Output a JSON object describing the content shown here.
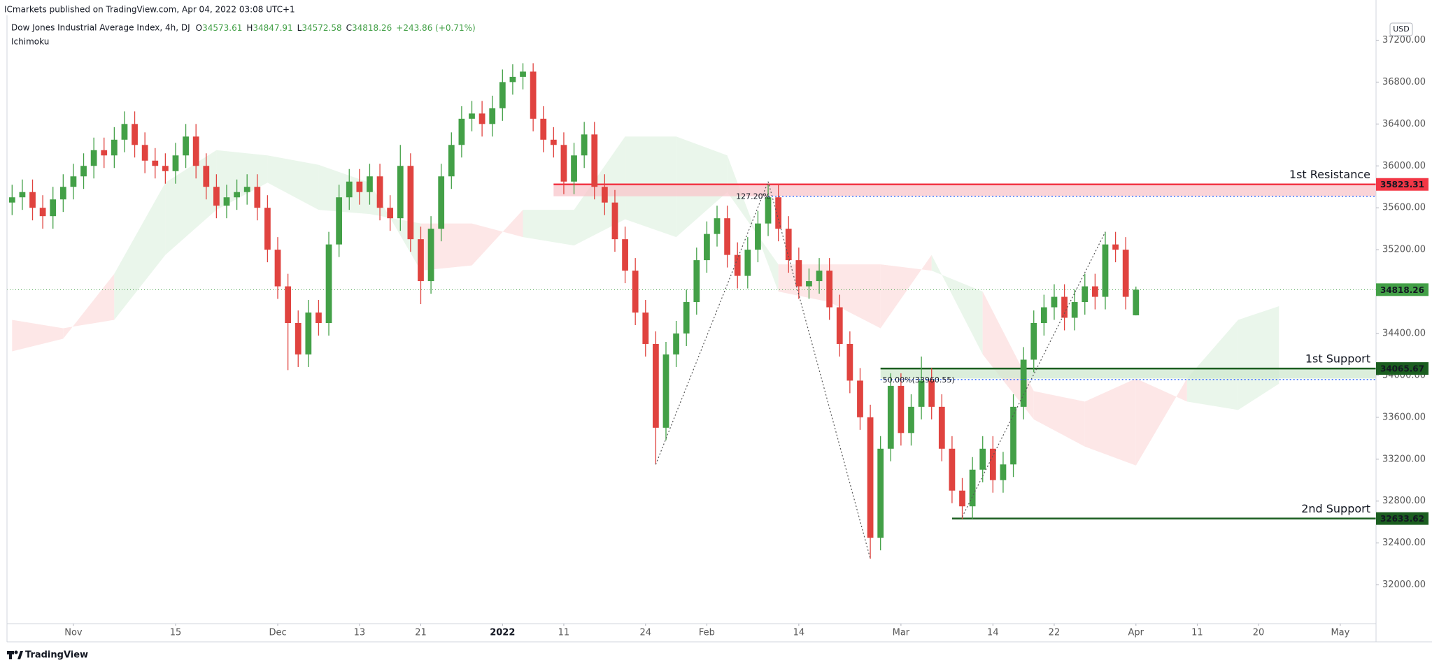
{
  "chart_data": {
    "type": "candlestick",
    "publisher": "ICmarkets published on TradingView.com, Apr 04, 2022 03:08 UTC+1",
    "title": "Dow Jones Industrial Average Index, 4h, DJ",
    "indicator": "Ichimoku",
    "ohlc_letters": [
      "O",
      "H",
      "L",
      "C"
    ],
    "change": "+243.86 (+0.71%)",
    "currency": "USD",
    "watermark": "TradingView",
    "up_color": "#43a047",
    "down_color": "#e0433f",
    "x": [
      0,
      1,
      2,
      3,
      4,
      5,
      6,
      7,
      8,
      9,
      10,
      11,
      12,
      13,
      14,
      15,
      16,
      17,
      18,
      19,
      20,
      21,
      22,
      23,
      24,
      25,
      26,
      27,
      28,
      29,
      30,
      31,
      32,
      33,
      34,
      35,
      36,
      37,
      38,
      39,
      40,
      41,
      42,
      43,
      44,
      45,
      46,
      47,
      48,
      49,
      50,
      51,
      52,
      53,
      54,
      55,
      56,
      57,
      58,
      59,
      60,
      61,
      62,
      63,
      64,
      65,
      66,
      67,
      68,
      69,
      70,
      71,
      72,
      73,
      74,
      75,
      76,
      77,
      78,
      79,
      80,
      81,
      82,
      83,
      84,
      85,
      86,
      87,
      88,
      89,
      90,
      91,
      92,
      93,
      94,
      95,
      96,
      97,
      98,
      99,
      100,
      101,
      102,
      103,
      104,
      105,
      106,
      107,
      108,
      109,
      110
    ],
    "open": [
      35650,
      35700,
      35750,
      35600,
      35520,
      35680,
      35800,
      35900,
      36000,
      36150,
      36100,
      36250,
      36400,
      36200,
      36050,
      36000,
      35950,
      36100,
      36280,
      36000,
      35800,
      35620,
      35700,
      35750,
      35800,
      35600,
      35200,
      34850,
      34500,
      34200,
      34600,
      34500,
      35250,
      35700,
      35850,
      35750,
      35900,
      35600,
      35500,
      36000,
      35300,
      34900,
      35400,
      35900,
      36200,
      36450,
      36500,
      36400,
      36550,
      36800,
      36850,
      36900,
      36450,
      36250,
      36200,
      35850,
      36100,
      36300,
      35800,
      35650,
      35300,
      35000,
      34600,
      34300,
      33500,
      34200,
      34400,
      34700,
      35100,
      35350,
      35500,
      35150,
      34950,
      35200,
      35450,
      35700,
      35400,
      35100,
      34850,
      34900,
      35000,
      34650,
      34300,
      33950,
      33600,
      32450,
      33300,
      33900,
      33450,
      33700,
      33950,
      33700,
      33300,
      32900,
      32750,
      33100,
      33300,
      33000,
      33150,
      33700,
      34150,
      34500,
      34650,
      34750,
      34550,
      34700,
      34850,
      34750,
      35250,
      35200,
      34573.61
    ],
    "high": [
      35820,
      35870,
      35870,
      35720,
      35800,
      35920,
      36020,
      36120,
      36270,
      36270,
      36370,
      36520,
      36520,
      36320,
      36170,
      36120,
      36220,
      36400,
      36400,
      36120,
      35920,
      35820,
      35870,
      35920,
      35920,
      35720,
      35320,
      34970,
      34620,
      34720,
      34720,
      35370,
      35820,
      35970,
      35970,
      36020,
      36020,
      35720,
      36200,
      36120,
      35420,
      35520,
      36020,
      36320,
      36570,
      36620,
      36620,
      36670,
      36920,
      36970,
      36980,
      36980,
      36570,
      36370,
      36320,
      36220,
      36420,
      36420,
      35920,
      35770,
      35420,
      35120,
      34720,
      34420,
      34320,
      34520,
      34820,
      35220,
      35470,
      35620,
      35620,
      35270,
      35320,
      35570,
      35820,
      35820,
      35520,
      35220,
      35020,
      35120,
      35120,
      34770,
      34420,
      34070,
      33720,
      33420,
      34020,
      34020,
      33820,
      34180,
      34070,
      33820,
      33420,
      33020,
      33220,
      33420,
      33420,
      33270,
      33820,
      34270,
      34620,
      34770,
      34870,
      34870,
      34820,
      34970,
      34970,
      35370,
      35370,
      35320,
      34847.91
    ],
    "low": [
      35530,
      35580,
      35480,
      35400,
      35400,
      35560,
      35680,
      35780,
      35880,
      35980,
      35980,
      36130,
      36080,
      35930,
      35880,
      35830,
      35830,
      35980,
      35880,
      35680,
      35500,
      35500,
      35580,
      35630,
      35480,
      35080,
      34730,
      34050,
      34080,
      34080,
      34380,
      34380,
      35130,
      35580,
      35630,
      35630,
      35480,
      35380,
      35380,
      35180,
      34680,
      34780,
      35280,
      35780,
      36080,
      36330,
      36280,
      36280,
      36430,
      36680,
      36730,
      36330,
      36130,
      36080,
      35730,
      35730,
      35980,
      35680,
      35530,
      35180,
      34880,
      34480,
      34180,
      33150,
      33380,
      34080,
      34280,
      34580,
      34980,
      35230,
      35030,
      34830,
      34830,
      35080,
      35330,
      35280,
      34980,
      34730,
      34730,
      34780,
      34530,
      34180,
      33830,
      33480,
      32250,
      32330,
      33180,
      33330,
      33330,
      33580,
      33580,
      33180,
      32780,
      32630,
      32630,
      32980,
      32880,
      32880,
      33030,
      33580,
      34030,
      34380,
      34530,
      34430,
      34430,
      34580,
      34630,
      34630,
      35080,
      34630,
      34572.58
    ],
    "close": [
      35700,
      35750,
      35600,
      35520,
      35680,
      35800,
      35900,
      36000,
      36150,
      36100,
      36250,
      36400,
      36200,
      36050,
      36000,
      35950,
      36100,
      36280,
      36000,
      35800,
      35620,
      35700,
      35750,
      35800,
      35600,
      35200,
      34850,
      34500,
      34200,
      34600,
      34500,
      35250,
      35700,
      35850,
      35750,
      35900,
      35600,
      35500,
      36000,
      35300,
      34900,
      35400,
      35900,
      36200,
      36450,
      36500,
      36400,
      36550,
      36800,
      36850,
      36900,
      36450,
      36250,
      36200,
      35850,
      36100,
      36300,
      35800,
      35650,
      35300,
      35000,
      34600,
      34300,
      33500,
      34200,
      34400,
      34700,
      35100,
      35350,
      35500,
      35150,
      34950,
      35200,
      35450,
      35700,
      35400,
      35100,
      34850,
      34900,
      35000,
      34650,
      34300,
      33950,
      33600,
      32450,
      33300,
      33900,
      33450,
      33700,
      33950,
      33700,
      33300,
      32900,
      32750,
      33100,
      33300,
      33000,
      33150,
      33700,
      34150,
      34500,
      34650,
      34750,
      34550,
      34700,
      34850,
      34750,
      35250,
      35200,
      34750,
      34818.26
    ],
    "cloud": {
      "x": [
        0,
        5,
        10,
        15,
        20,
        25,
        30,
        35,
        40,
        45,
        50,
        55,
        60,
        65,
        70,
        75,
        80,
        85,
        90,
        95,
        100,
        105,
        110,
        115,
        120,
        124
      ],
      "span_a": [
        34230,
        34350,
        34970,
        35840,
        36150,
        36100,
        36010,
        35840,
        35000,
        35050,
        35580,
        35580,
        36280,
        36280,
        36100,
        34800,
        34700,
        34450,
        35150,
        34200,
        33580,
        33320,
        33140,
        33970,
        34530,
        34660
      ],
      "span_b": [
        34530,
        34450,
        34530,
        35150,
        35580,
        35840,
        35580,
        35540,
        35450,
        35450,
        35320,
        35240,
        35490,
        35320,
        35750,
        35060,
        35060,
        35060,
        35000,
        34800,
        33850,
        33750,
        33970,
        33750,
        33670,
        33920
      ],
      "up_color": "#e8f5e9",
      "down_color": "#fde4e4"
    },
    "levels": [
      {
        "name": "1st Resistance",
        "value": 35823.31,
        "band_to": 35710,
        "from": 53,
        "color": "#f23645",
        "band_color": "#f8c6cb"
      },
      {
        "name": "1st Support",
        "value": 34065.67,
        "band_to": 33970,
        "from": 85,
        "color": "#1b5e20",
        "band_color": "#cfe8cf"
      },
      {
        "name": "2nd Support",
        "value": 32633.62,
        "from": 92,
        "color": "#1b5e20"
      }
    ],
    "fib_lines": [
      {
        "label": "127.20%",
        "value": 35710,
        "from": 74
      },
      {
        "label": "50.00%(33960.55)",
        "value": 33960.55,
        "from": 85
      }
    ],
    "fib_color": "#2962ff",
    "trend_lines": [
      {
        "x1": 63,
        "y1": 33150,
        "x2": 74,
        "y2": 35850
      },
      {
        "x1": 74,
        "y1": 35850,
        "x2": 84,
        "y2": 32250
      },
      {
        "x1": 93,
        "y1": 32650,
        "x2": 107,
        "y2": 35370
      }
    ],
    "xlim": [
      -0.5,
      133.5
    ],
    "ylim": [
      31630,
      37390
    ],
    "yticks": [
      {
        "value": 32000,
        "label": "32000.00"
      },
      {
        "value": 32400,
        "label": "32400.00"
      },
      {
        "value": 32800,
        "label": "32800.00"
      },
      {
        "value": 33200,
        "label": "33200.00"
      },
      {
        "value": 33600,
        "label": "33600.00"
      },
      {
        "value": 34000,
        "label": "34000.00"
      },
      {
        "value": 34400,
        "label": "34400.00"
      },
      {
        "value": 34800,
        "label": "34800.00"
      },
      {
        "value": 35200,
        "label": "35200.00"
      },
      {
        "value": 35600,
        "label": "35600.00"
      },
      {
        "value": 36000,
        "label": "36000.00"
      },
      {
        "value": 36400,
        "label": "36400.00"
      },
      {
        "value": 36800,
        "label": "36800.00"
      },
      {
        "value": 37200,
        "label": "37200.00"
      }
    ],
    "xticks": [
      {
        "value": 6,
        "label": "Nov"
      },
      {
        "value": 16,
        "label": "15"
      },
      {
        "value": 26,
        "label": "Dec"
      },
      {
        "value": 34,
        "label": "13"
      },
      {
        "value": 40,
        "label": "21"
      },
      {
        "value": 48,
        "label": "2022",
        "bold": true
      },
      {
        "value": 54,
        "label": "11"
      },
      {
        "value": 62,
        "label": "24"
      },
      {
        "value": 68,
        "label": "Feb"
      },
      {
        "value": 77,
        "label": "14"
      },
      {
        "value": 87,
        "label": "Mar"
      },
      {
        "value": 96,
        "label": "14"
      },
      {
        "value": 102,
        "label": "22"
      },
      {
        "value": 110,
        "label": "Apr"
      },
      {
        "value": 116,
        "label": "11"
      },
      {
        "value": 122,
        "label": "20"
      },
      {
        "value": 130,
        "label": "May"
      }
    ]
  }
}
